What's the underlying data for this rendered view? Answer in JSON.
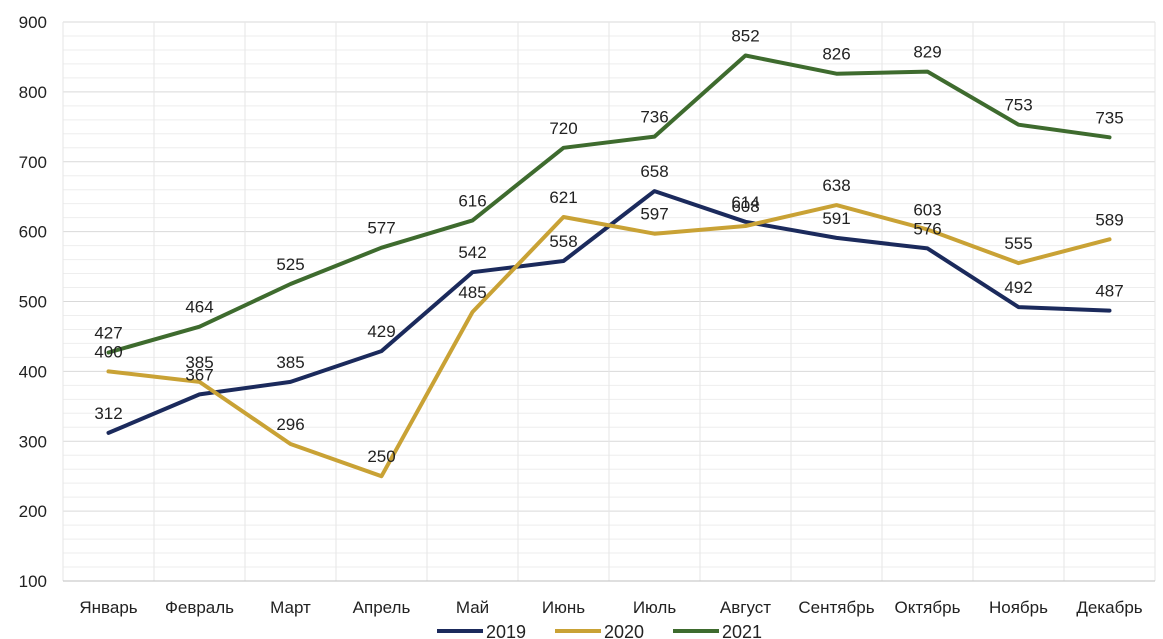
{
  "chart_data": {
    "type": "line",
    "categories": [
      "Январь",
      "Февраль",
      "Март",
      "Апрель",
      "Май",
      "Июнь",
      "Июль",
      "Август",
      "Сентябрь",
      "Октябрь",
      "Ноябрь",
      "Декабрь"
    ],
    "series": [
      {
        "name": "2019",
        "color": "#1b2a5c",
        "values": [
          312,
          367,
          385,
          429,
          542,
          558,
          658,
          614,
          591,
          576,
          492,
          487
        ]
      },
      {
        "name": "2020",
        "color": "#c9a235",
        "values": [
          400,
          385,
          296,
          250,
          485,
          621,
          597,
          608,
          638,
          603,
          555,
          589
        ]
      },
      {
        "name": "2021",
        "color": "#3e6b2e",
        "values": [
          427,
          464,
          525,
          577,
          616,
          720,
          736,
          852,
          826,
          829,
          753,
          735
        ]
      }
    ],
    "ylim": [
      100,
      900
    ],
    "yticks": [
      100,
      200,
      300,
      400,
      500,
      600,
      700,
      800,
      900
    ],
    "grid": true,
    "legend": "bottom",
    "data_labels": true
  }
}
